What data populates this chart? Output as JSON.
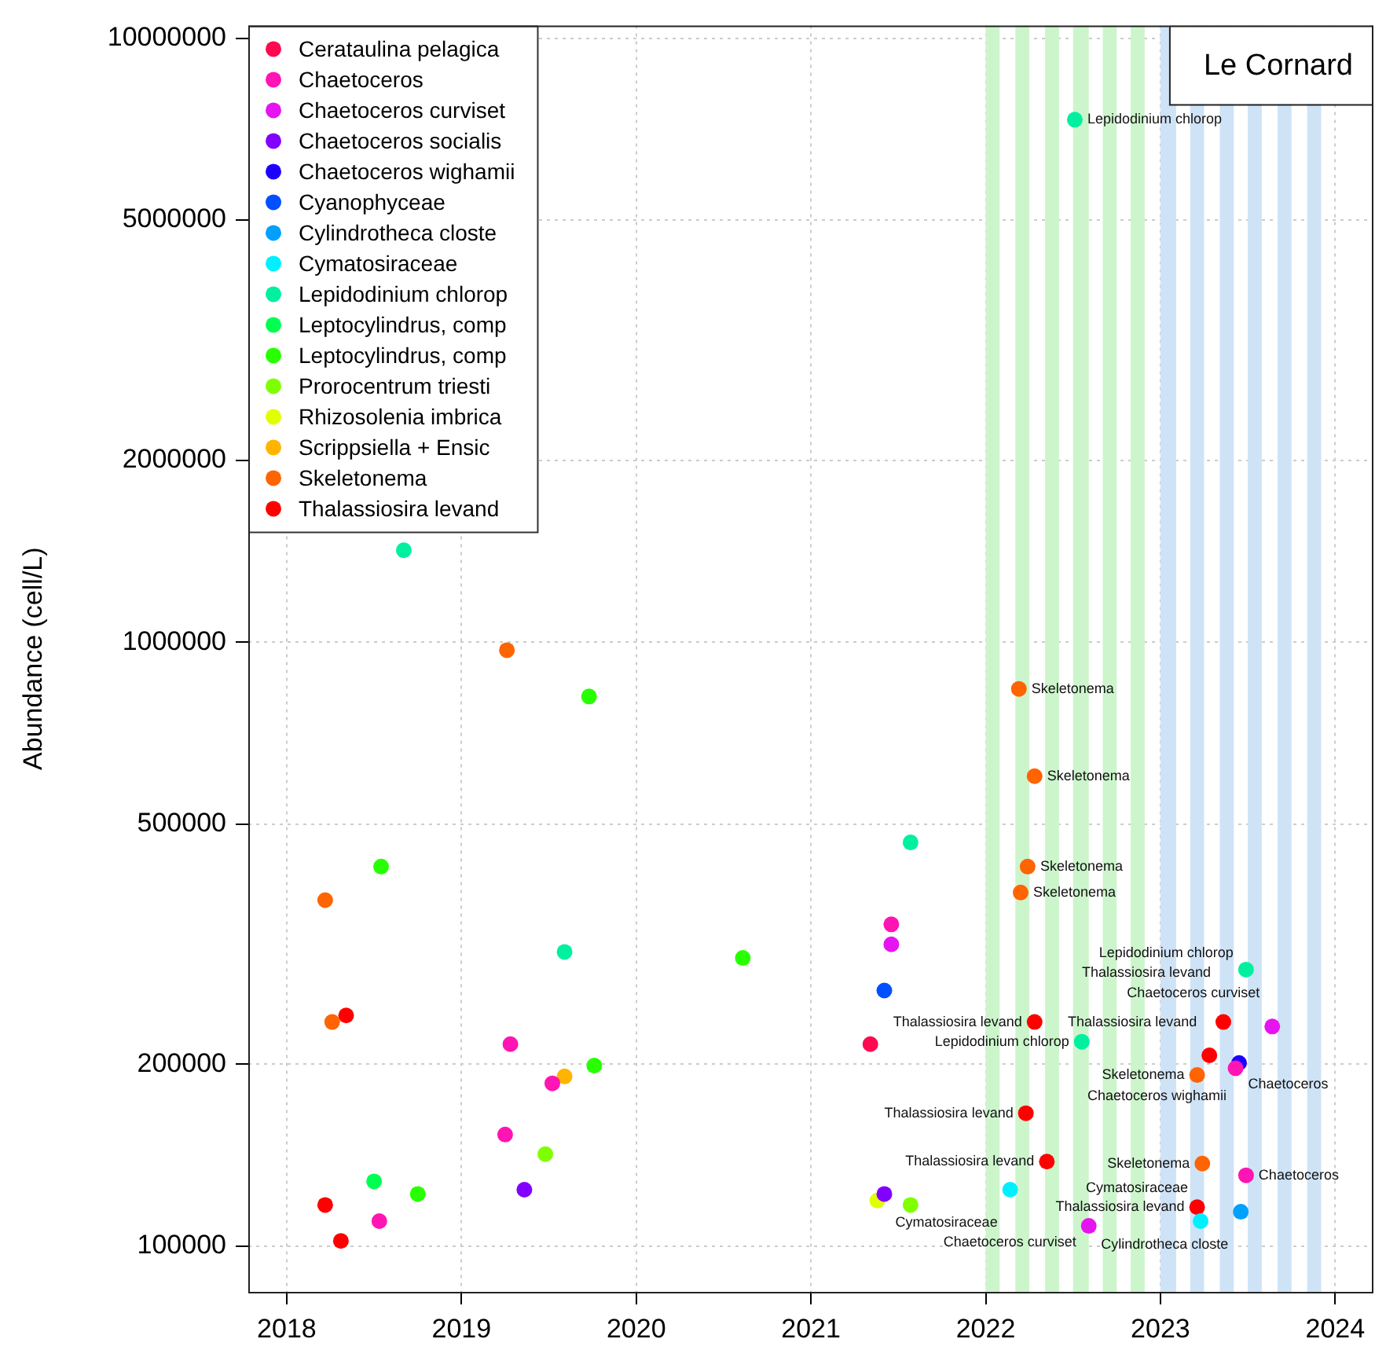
{
  "chart_data": {
    "type": "scatter",
    "ylabel": "Abundance (cell/L)",
    "annotations": [
      "Le Cornard"
    ],
    "log": "y",
    "grid": true,
    "legend": "top left",
    "marker": "circle",
    "xlim": [
      2017.78,
      2024.21
    ],
    "ylim": [
      84000,
      10500000
    ],
    "xticks": [
      2018,
      2019,
      2020,
      2021,
      2022,
      2023,
      2024
    ],
    "yticks": [
      100000,
      200000,
      500000,
      1000000,
      2000000,
      5000000,
      10000000
    ],
    "bands": [
      {
        "axis": "x",
        "from": 2022.0,
        "to": 2022.08,
        "color": "#ccf5cc"
      },
      {
        "axis": "x",
        "from": 2022.17,
        "to": 2022.25,
        "color": "#ccf5cc"
      },
      {
        "axis": "x",
        "from": 2022.34,
        "to": 2022.42,
        "color": "#ccf5cc"
      },
      {
        "axis": "x",
        "from": 2022.5,
        "to": 2022.59,
        "color": "#ccf5cc"
      },
      {
        "axis": "x",
        "from": 2022.67,
        "to": 2022.75,
        "color": "#ccf5cc"
      },
      {
        "axis": "x",
        "from": 2022.83,
        "to": 2022.91,
        "color": "#ccf5cc"
      },
      {
        "axis": "x",
        "from": 2023.0,
        "to": 2023.09,
        "color": "#cfe3f7"
      },
      {
        "axis": "x",
        "from": 2023.17,
        "to": 2023.25,
        "color": "#cfe3f7"
      },
      {
        "axis": "x",
        "from": 2023.34,
        "to": 2023.42,
        "color": "#cfe3f7"
      },
      {
        "axis": "x",
        "from": 2023.5,
        "to": 2023.58,
        "color": "#cfe3f7"
      },
      {
        "axis": "x",
        "from": 2023.67,
        "to": 2023.75,
        "color": "#cfe3f7"
      },
      {
        "axis": "x",
        "from": 2023.84,
        "to": 2023.92,
        "color": "#cfe3f7"
      }
    ],
    "series": [
      {
        "name": "Cerataulina pelagica",
        "color": "#ff0a50",
        "x": [
          2021.34
        ],
        "values": [
          216000
        ]
      },
      {
        "name": "Chaetoceros",
        "color": "#ff14b4",
        "x": [
          2019.28,
          2019.52,
          2019.25,
          2018.53,
          2021.46,
          2023.43,
          2023.49
        ],
        "values": [
          216000,
          186000,
          153000,
          110000,
          341000,
          197000,
          131000
        ],
        "value_labels": [
          null,
          null,
          null,
          null,
          null,
          "Chaetoceros",
          "Chaetoceros"
        ]
      },
      {
        "name": "Chaetoceros curviset",
        "color": "#e614f0",
        "x": [
          2021.46,
          2023.64,
          2022.59
        ],
        "values": [
          316000,
          231000,
          108000
        ],
        "value_labels": [
          null,
          "Chaetoceros curviset",
          "Chaetoceros curviset"
        ]
      },
      {
        "name": "Chaetoceros socialis",
        "color": "#8200ff",
        "x": [
          2019.36,
          2021.42
        ],
        "values": [
          124000,
          122000
        ]
      },
      {
        "name": "Chaetoceros wighamii",
        "color": "#1e00ff",
        "x": [
          2023.45
        ],
        "values": [
          201000
        ],
        "value_labels": [
          "Chaetoceros wighamii"
        ]
      },
      {
        "name": "Cyanophyceae",
        "color": "#0050ff",
        "x": [
          2021.42
        ],
        "values": [
          265000
        ]
      },
      {
        "name": "Cylindrotheca closte",
        "color": "#00a0ff",
        "x": [
          2023.46
        ],
        "values": [
          114000
        ],
        "value_labels": [
          "Cylindrotheca closte"
        ]
      },
      {
        "name": "Cymatosiraceae",
        "color": "#00f0ff",
        "x": [
          2022.14,
          2023.23
        ],
        "values": [
          124000,
          110000
        ],
        "value_labels": [
          "Cymatosiraceae",
          "Cymatosiraceae"
        ]
      },
      {
        "name": "Lepidodinium chlorop",
        "color": "#00f0a0",
        "x": [
          2018.67,
          2019.59,
          2021.57,
          2022.51,
          2023.49,
          2022.55
        ],
        "values": [
          1420000,
          307000,
          466000,
          7330000,
          287000,
          218000
        ],
        "value_labels": [
          null,
          null,
          null,
          "Lepidodinium chlorop",
          "Lepidodinium chlorop",
          "Lepidodinium chlorop"
        ]
      },
      {
        "name": "Leptocylindrus, comp",
        "color": "#00ff50",
        "x": [
          2018.5
        ],
        "values": [
          128000
        ]
      },
      {
        "name": "Leptocylindrus, comp",
        "color": "#28ff00",
        "x": [
          2018.54,
          2019.73,
          2020.61,
          2019.76,
          2018.75
        ],
        "values": [
          425000,
          813000,
          300000,
          199000,
          122000
        ]
      },
      {
        "name": "Prorocentrum triesti",
        "color": "#80ff00",
        "x": [
          2019.48,
          2021.57
        ],
        "values": [
          142000,
          117000
        ]
      },
      {
        "name": "Rhizosolenia imbrica",
        "color": "#e0ff00",
        "x": [
          2021.38
        ],
        "values": [
          119000
        ]
      },
      {
        "name": "Scrippsiella + Ensic",
        "color": "#ffb400",
        "x": [
          2019.59
        ],
        "values": [
          191000
        ]
      },
      {
        "name": "Skeletonema",
        "color": "#ff6400",
        "x": [
          2018.22,
          2018.26,
          2019.26,
          2022.19,
          2022.28,
          2022.24,
          2022.2,
          2023.21,
          2023.24
        ],
        "values": [
          374000,
          235000,
          970000,
          837000,
          600000,
          425000,
          385000,
          192000,
          137000
        ],
        "value_labels": [
          null,
          null,
          null,
          "Skeletonema",
          "Skeletonema",
          "Skeletonema",
          "Skeletonema",
          "Skeletonema",
          "Skeletonema"
        ]
      },
      {
        "name": "Thalassiosira levand",
        "color": "#ff0000",
        "x": [
          2018.34,
          2018.22,
          2018.31,
          2022.28,
          2022.23,
          2022.35,
          2023.36,
          2023.28,
          2023.21
        ],
        "values": [
          241000,
          117000,
          102000,
          235000,
          166000,
          138000,
          235000,
          207000,
          116000
        ],
        "value_labels": [
          null,
          null,
          null,
          "Thalassiosira levand",
          "Thalassiosira levand",
          "Thalassiosira levand",
          "Thalassiosira levand",
          "Thalassiosira levand",
          "Thalassiosira levand"
        ]
      }
    ]
  }
}
